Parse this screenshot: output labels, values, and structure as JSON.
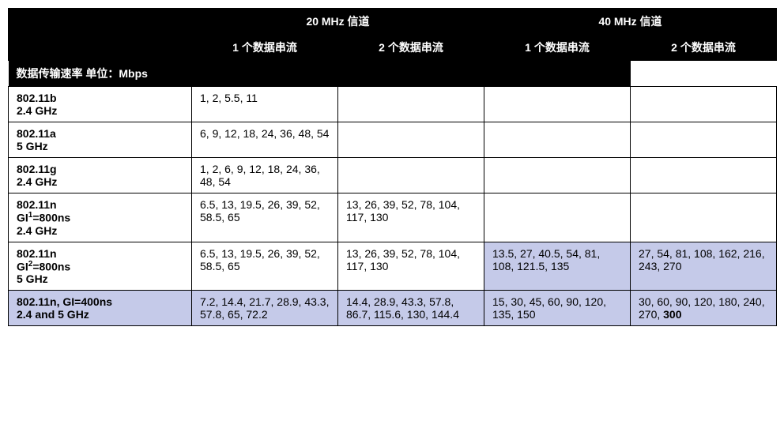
{
  "header": {
    "ch20": "20 MHz 信道",
    "ch40": "40 MHz 信道",
    "s1": "1 个数据串流",
    "s2": "2 个数据串流",
    "rateLabel": "数据传输速率  单位：Mbps"
  },
  "rows": {
    "r0": {
      "l1": "802.11b",
      "l2": "2.4 GHz",
      "a": "1, 2, 5.5, 11",
      "b": "",
      "c": "",
      "d": "",
      "hl": []
    },
    "r1": {
      "l1": "802.11a",
      "l2": "5 GHz",
      "a": "6, 9, 12, 18, 24, 36, 48, 54",
      "b": "",
      "c": "",
      "d": "",
      "hl": []
    },
    "r2": {
      "l1": "802.11g",
      "l2": "2.4 GHz",
      "a": "1, 2, 6, 9, 12, 18, 24, 36, 48, 54",
      "b": "",
      "c": "",
      "d": "",
      "hl": []
    },
    "r3": {
      "l1": "802.11n",
      "gi": "GI",
      "giSup": "1",
      "giTail": "=800ns",
      "l3": "2.4 GHz",
      "a": "6.5, 13, 19.5, 26, 39, 52, 58.5, 65",
      "b": "13, 26, 39, 52, 78, 104, 117, 130",
      "c": "",
      "d": "",
      "hl": []
    },
    "r4": {
      "l1": "802.11n",
      "gi": "GI",
      "giSup": "2",
      "giTail": "=800ns",
      "l3": "5 GHz",
      "a": "6.5, 13, 19.5, 26, 39, 52, 58.5, 65",
      "b": "13, 26, 39, 52, 78, 104, 117, 130",
      "c": "13.5, 27, 40.5, 54, 81, 108, 121.5, 135",
      "d": "27, 54, 81, 108, 162, 216, 243, 270",
      "hl": [
        "c",
        "d"
      ]
    },
    "r5": {
      "l1": "802.11n, GI=400ns",
      "l2": "2.4 and 5 GHz",
      "a": "7.2, 14.4, 21.7, 28.9, 43.3, 57.8, 65, 72.2",
      "b": "14.4, 28.9, 43.3, 57.8, 86.7, 115.6, 130, 144.4",
      "c": "15, 30, 45, 60, 90, 120, 135, 150",
      "dPre": "30, 60, 90, 120, 180, 240, 270, ",
      "dBold": "300",
      "hl": [
        "row"
      ]
    }
  },
  "colors": {
    "highlight": "#c5cae9",
    "headerBg": "#000000",
    "headerFg": "#ffffff",
    "border": "#000000"
  }
}
